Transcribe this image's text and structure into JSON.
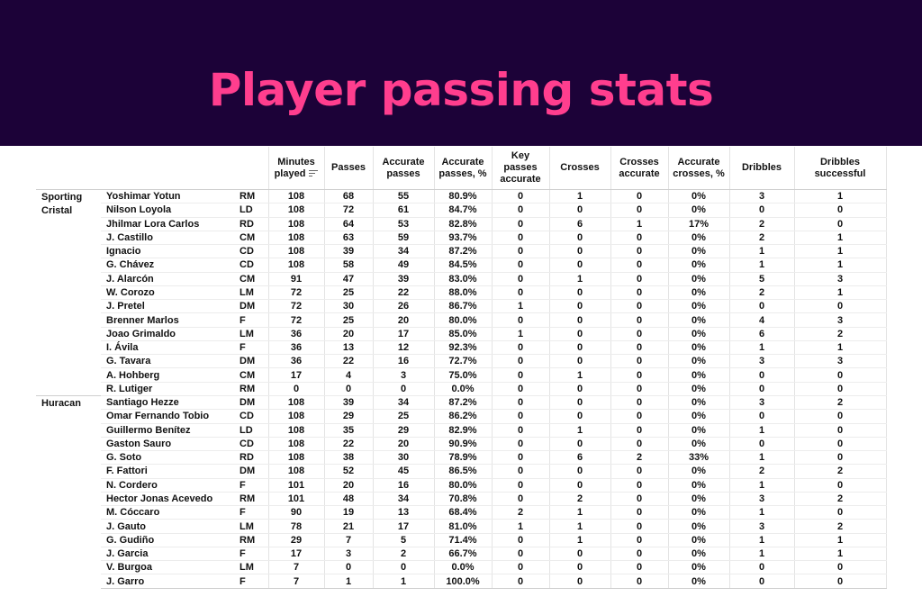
{
  "title": "Player passing stats",
  "colors": {
    "banner_bg": "#1c0238",
    "title": "#ff3e8e"
  },
  "chart_data": {
    "type": "table",
    "sorted_column_icon": "filter-lines-icon",
    "columns": [
      "Minutes played",
      "Passes",
      "Accurate passes",
      "Accurate passes, %",
      "Key passes accurate",
      "Crosses",
      "Crosses accurate",
      "Accurate crosses, %",
      "Dribbles",
      "Dribbles successful"
    ],
    "groups": [
      {
        "team": "Sporting Cristal",
        "rows": [
          {
            "player": "Yoshimar Yotun",
            "pos": "RM",
            "values": [
              "108",
              "68",
              "55",
              "80.9%",
              "0",
              "1",
              "0",
              "0%",
              "3",
              "1"
            ]
          },
          {
            "player": "Nilson Loyola",
            "pos": "LD",
            "values": [
              "108",
              "72",
              "61",
              "84.7%",
              "0",
              "0",
              "0",
              "0%",
              "0",
              "0"
            ]
          },
          {
            "player": "Jhilmar Lora Carlos",
            "pos": "RD",
            "values": [
              "108",
              "64",
              "53",
              "82.8%",
              "0",
              "6",
              "1",
              "17%",
              "2",
              "0"
            ]
          },
          {
            "player": "J. Castillo",
            "pos": "CM",
            "values": [
              "108",
              "63",
              "59",
              "93.7%",
              "0",
              "0",
              "0",
              "0%",
              "2",
              "1"
            ]
          },
          {
            "player": "Ignacio",
            "pos": "CD",
            "values": [
              "108",
              "39",
              "34",
              "87.2%",
              "0",
              "0",
              "0",
              "0%",
              "1",
              "1"
            ]
          },
          {
            "player": "G. Chávez",
            "pos": "CD",
            "values": [
              "108",
              "58",
              "49",
              "84.5%",
              "0",
              "0",
              "0",
              "0%",
              "1",
              "1"
            ]
          },
          {
            "player": "J. Alarcón",
            "pos": "CM",
            "values": [
              "91",
              "47",
              "39",
              "83.0%",
              "0",
              "1",
              "0",
              "0%",
              "5",
              "3"
            ]
          },
          {
            "player": "W. Corozo",
            "pos": "LM",
            "values": [
              "72",
              "25",
              "22",
              "88.0%",
              "0",
              "0",
              "0",
              "0%",
              "2",
              "1"
            ]
          },
          {
            "player": "J. Pretel",
            "pos": "DM",
            "values": [
              "72",
              "30",
              "26",
              "86.7%",
              "1",
              "0",
              "0",
              "0%",
              "0",
              "0"
            ]
          },
          {
            "player": "Brenner Marlos",
            "pos": "F",
            "values": [
              "72",
              "25",
              "20",
              "80.0%",
              "0",
              "0",
              "0",
              "0%",
              "4",
              "3"
            ]
          },
          {
            "player": "Joao Grimaldo",
            "pos": "LM",
            "values": [
              "36",
              "20",
              "17",
              "85.0%",
              "1",
              "0",
              "0",
              "0%",
              "6",
              "2"
            ]
          },
          {
            "player": "I. Ávila",
            "pos": "F",
            "values": [
              "36",
              "13",
              "12",
              "92.3%",
              "0",
              "0",
              "0",
              "0%",
              "1",
              "1"
            ]
          },
          {
            "player": "G. Tavara",
            "pos": "DM",
            "values": [
              "36",
              "22",
              "16",
              "72.7%",
              "0",
              "0",
              "0",
              "0%",
              "3",
              "3"
            ]
          },
          {
            "player": "A. Hohberg",
            "pos": "CM",
            "values": [
              "17",
              "4",
              "3",
              "75.0%",
              "0",
              "1",
              "0",
              "0%",
              "0",
              "0"
            ]
          },
          {
            "player": "R. Lutiger",
            "pos": "RM",
            "values": [
              "0",
              "0",
              "0",
              "0.0%",
              "0",
              "0",
              "0",
              "0%",
              "0",
              "0"
            ]
          }
        ]
      },
      {
        "team": "Huracan",
        "rows": [
          {
            "player": "Santiago Hezze",
            "pos": "DM",
            "values": [
              "108",
              "39",
              "34",
              "87.2%",
              "0",
              "0",
              "0",
              "0%",
              "3",
              "2"
            ]
          },
          {
            "player": "Omar Fernando Tobio",
            "pos": "CD",
            "values": [
              "108",
              "29",
              "25",
              "86.2%",
              "0",
              "0",
              "0",
              "0%",
              "0",
              "0"
            ]
          },
          {
            "player": "Guillermo Benítez",
            "pos": "LD",
            "values": [
              "108",
              "35",
              "29",
              "82.9%",
              "0",
              "1",
              "0",
              "0%",
              "1",
              "0"
            ]
          },
          {
            "player": "Gaston Sauro",
            "pos": "CD",
            "values": [
              "108",
              "22",
              "20",
              "90.9%",
              "0",
              "0",
              "0",
              "0%",
              "0",
              "0"
            ]
          },
          {
            "player": "G. Soto",
            "pos": "RD",
            "values": [
              "108",
              "38",
              "30",
              "78.9%",
              "0",
              "6",
              "2",
              "33%",
              "1",
              "0"
            ]
          },
          {
            "player": "F. Fattori",
            "pos": "DM",
            "values": [
              "108",
              "52",
              "45",
              "86.5%",
              "0",
              "0",
              "0",
              "0%",
              "2",
              "2"
            ]
          },
          {
            "player": "N. Cordero",
            "pos": "F",
            "values": [
              "101",
              "20",
              "16",
              "80.0%",
              "0",
              "0",
              "0",
              "0%",
              "1",
              "0"
            ]
          },
          {
            "player": "Hector Jonas Acevedo",
            "pos": "RM",
            "values": [
              "101",
              "48",
              "34",
              "70.8%",
              "0",
              "2",
              "0",
              "0%",
              "3",
              "2"
            ]
          },
          {
            "player": "M. Cóccaro",
            "pos": "F",
            "values": [
              "90",
              "19",
              "13",
              "68.4%",
              "2",
              "1",
              "0",
              "0%",
              "1",
              "0"
            ]
          },
          {
            "player": "J. Gauto",
            "pos": "LM",
            "values": [
              "78",
              "21",
              "17",
              "81.0%",
              "1",
              "1",
              "0",
              "0%",
              "3",
              "2"
            ]
          },
          {
            "player": "G. Gudiño",
            "pos": "RM",
            "values": [
              "29",
              "7",
              "5",
              "71.4%",
              "0",
              "1",
              "0",
              "0%",
              "1",
              "1"
            ]
          },
          {
            "player": "J. Garcia",
            "pos": "F",
            "values": [
              "17",
              "3",
              "2",
              "66.7%",
              "0",
              "0",
              "0",
              "0%",
              "1",
              "1"
            ]
          },
          {
            "player": "V. Burgoa",
            "pos": "LM",
            "values": [
              "7",
              "0",
              "0",
              "0.0%",
              "0",
              "0",
              "0",
              "0%",
              "0",
              "0"
            ]
          },
          {
            "player": "J. Garro",
            "pos": "F",
            "values": [
              "7",
              "1",
              "1",
              "100.0%",
              "0",
              "0",
              "0",
              "0%",
              "0",
              "0"
            ]
          }
        ]
      }
    ]
  }
}
